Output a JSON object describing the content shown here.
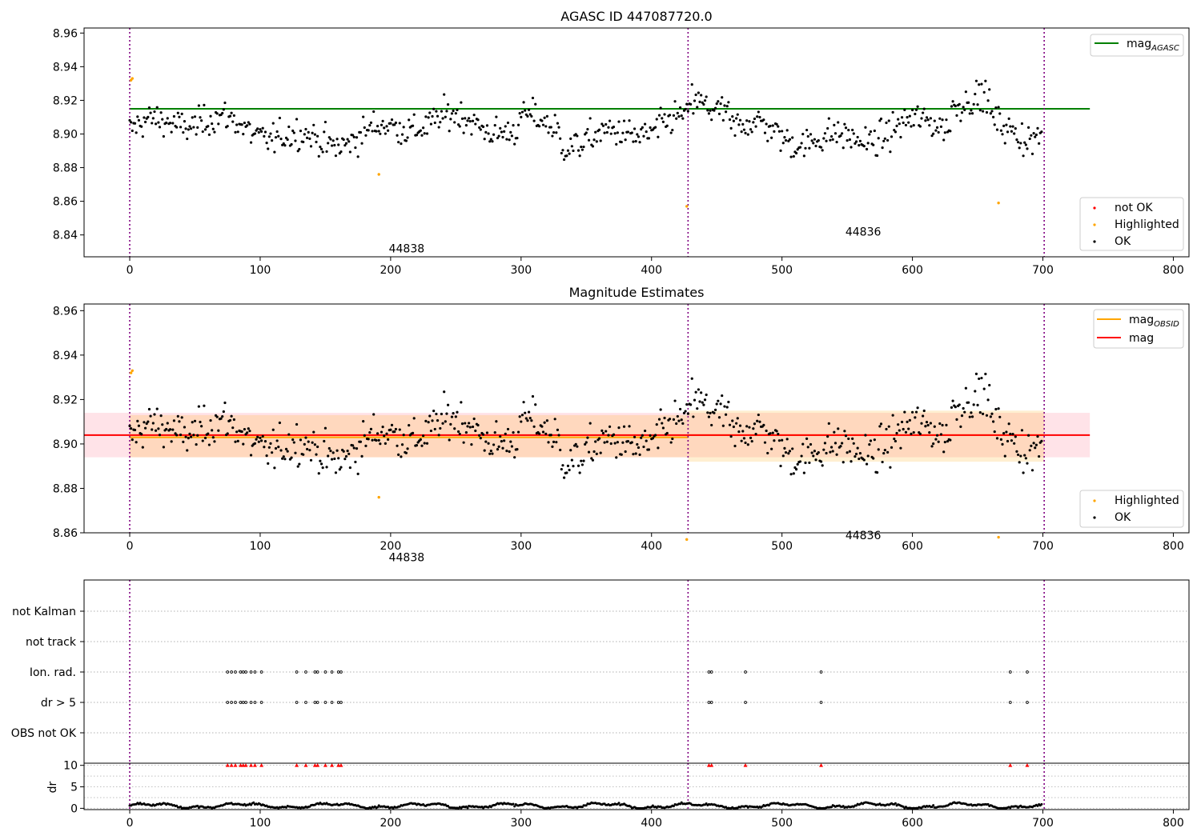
{
  "chart_data": [
    {
      "type": "scatter",
      "title": "AGASC ID 447087720.0",
      "xlim": [
        -35,
        812
      ],
      "ylim": [
        8.827,
        8.963
      ],
      "xticks": [
        0,
        100,
        200,
        300,
        400,
        500,
        600,
        700,
        800
      ],
      "yticks": [
        8.84,
        8.86,
        8.88,
        8.9,
        8.92,
        8.94,
        8.96
      ],
      "ytick_labels": [
        "8.84",
        "8.86",
        "8.88",
        "8.90",
        "8.92",
        "8.94",
        "8.96"
      ],
      "obsid_boundaries": [
        0,
        428,
        701
      ],
      "obsid_labels": [
        {
          "text": "44838",
          "x": 200,
          "y": 8.832
        },
        {
          "text": "44836",
          "x": 550,
          "y": 8.842
        }
      ],
      "series": [
        {
          "name": "mag",
          "name_subscript": "AGASC",
          "kind": "hline",
          "value": 8.915,
          "xrange": [
            0,
            736
          ],
          "color": "#008000"
        },
        {
          "name": "not OK",
          "kind": "points",
          "color": "#ff0000",
          "points": []
        },
        {
          "name": "Highlighted",
          "kind": "points",
          "color": "#ffa500",
          "points": [
            [
              1,
              8.932
            ],
            [
              2,
              8.933
            ],
            [
              191,
              8.876
            ],
            [
              427,
              8.857
            ],
            [
              666,
              8.859
            ]
          ]
        },
        {
          "name": "OK",
          "kind": "points",
          "color": "#000000",
          "n": 700,
          "band": "noisy scatter around 8.90-8.92"
        }
      ],
      "legend": [
        "mag_AGASC",
        "not OK",
        "Highlighted",
        "OK"
      ],
      "legend_upper": {
        "main": "mag",
        "sub": "AGASC"
      },
      "legend_lower": [
        "not OK",
        "Highlighted",
        "OK"
      ]
    },
    {
      "type": "scatter",
      "title": "Magnitude Estimates",
      "xlim": [
        -35,
        812
      ],
      "ylim": [
        8.86,
        8.963
      ],
      "xticks": [
        0,
        100,
        200,
        300,
        400,
        500,
        600,
        700,
        800
      ],
      "yticks": [
        8.86,
        8.88,
        8.9,
        8.92,
        8.94,
        8.96
      ],
      "ytick_labels": [
        "8.86",
        "8.88",
        "8.90",
        "8.92",
        "8.94",
        "8.96"
      ],
      "obsid_boundaries": [
        0,
        428,
        701
      ],
      "obsid_labels": [
        {
          "text": "44838",
          "x": 200,
          "y": 8.849
        },
        {
          "text": "44836",
          "x": 550,
          "y": 8.859
        }
      ],
      "series": [
        {
          "name": "mag",
          "name_subscript": "OBSID",
          "kind": "steps",
          "color": "#ffa500",
          "segments": [
            {
              "x": [
                0,
                428
              ],
              "value": 8.903,
              "band": [
                8.894,
                8.913
              ]
            },
            {
              "x": [
                428,
                701
              ],
              "value": 8.904,
              "band": [
                8.892,
                8.915
              ]
            }
          ]
        },
        {
          "name": "mag",
          "kind": "hline",
          "value": 8.904,
          "xrange": [
            -35,
            736
          ],
          "band": [
            8.894,
            8.914
          ],
          "color": "#ff0000"
        },
        {
          "name": "Highlighted",
          "kind": "points",
          "color": "#ffa500",
          "points": [
            [
              1,
              8.932
            ],
            [
              2,
              8.933
            ],
            [
              191,
              8.876
            ],
            [
              427,
              8.857
            ],
            [
              666,
              8.858
            ]
          ]
        },
        {
          "name": "OK",
          "kind": "points",
          "color": "#000000",
          "n": 700
        }
      ],
      "legend_upper": [
        {
          "main": "mag",
          "sub": "OBSID"
        },
        {
          "main": "mag",
          "sub": ""
        }
      ],
      "legend_lower": [
        "Highlighted",
        "OK"
      ]
    },
    {
      "type": "scatter",
      "title": "",
      "xlim": [
        -35,
        812
      ],
      "categories": [
        "OBS not OK",
        "dr > 5",
        "Ion. rad.",
        "not track",
        "not Kalman"
      ],
      "flag_x": {
        "dr > 5": [
          75,
          78,
          81,
          85,
          87,
          89,
          93,
          96,
          101,
          128,
          135,
          142,
          144,
          150,
          155,
          160,
          162,
          444,
          446,
          472,
          530,
          675,
          688
        ],
        "Ion. rad.": [
          75,
          78,
          81,
          85,
          87,
          89,
          93,
          96,
          101,
          128,
          135,
          142,
          144,
          150,
          155,
          160,
          162,
          444,
          446,
          472,
          530,
          675,
          688
        ]
      },
      "obsid_boundaries": [
        0,
        428,
        701
      ]
    },
    {
      "type": "scatter",
      "ylabel": "dr",
      "xlim": [
        -35,
        812
      ],
      "ylim": [
        -0.3,
        10.5
      ],
      "yticks": [
        0,
        5,
        10
      ],
      "ytick_labels": [
        "0",
        "5",
        "10"
      ],
      "xticks": [
        0,
        100,
        200,
        300,
        400,
        500,
        600,
        700,
        800
      ],
      "clipped_markers_x": [
        75,
        78,
        81,
        85,
        87,
        89,
        93,
        96,
        101,
        128,
        135,
        142,
        144,
        150,
        155,
        160,
        162,
        444,
        446,
        472,
        530,
        675,
        688
      ],
      "clipped_value": 10,
      "obsid_boundaries": [
        0,
        428,
        701
      ]
    }
  ]
}
